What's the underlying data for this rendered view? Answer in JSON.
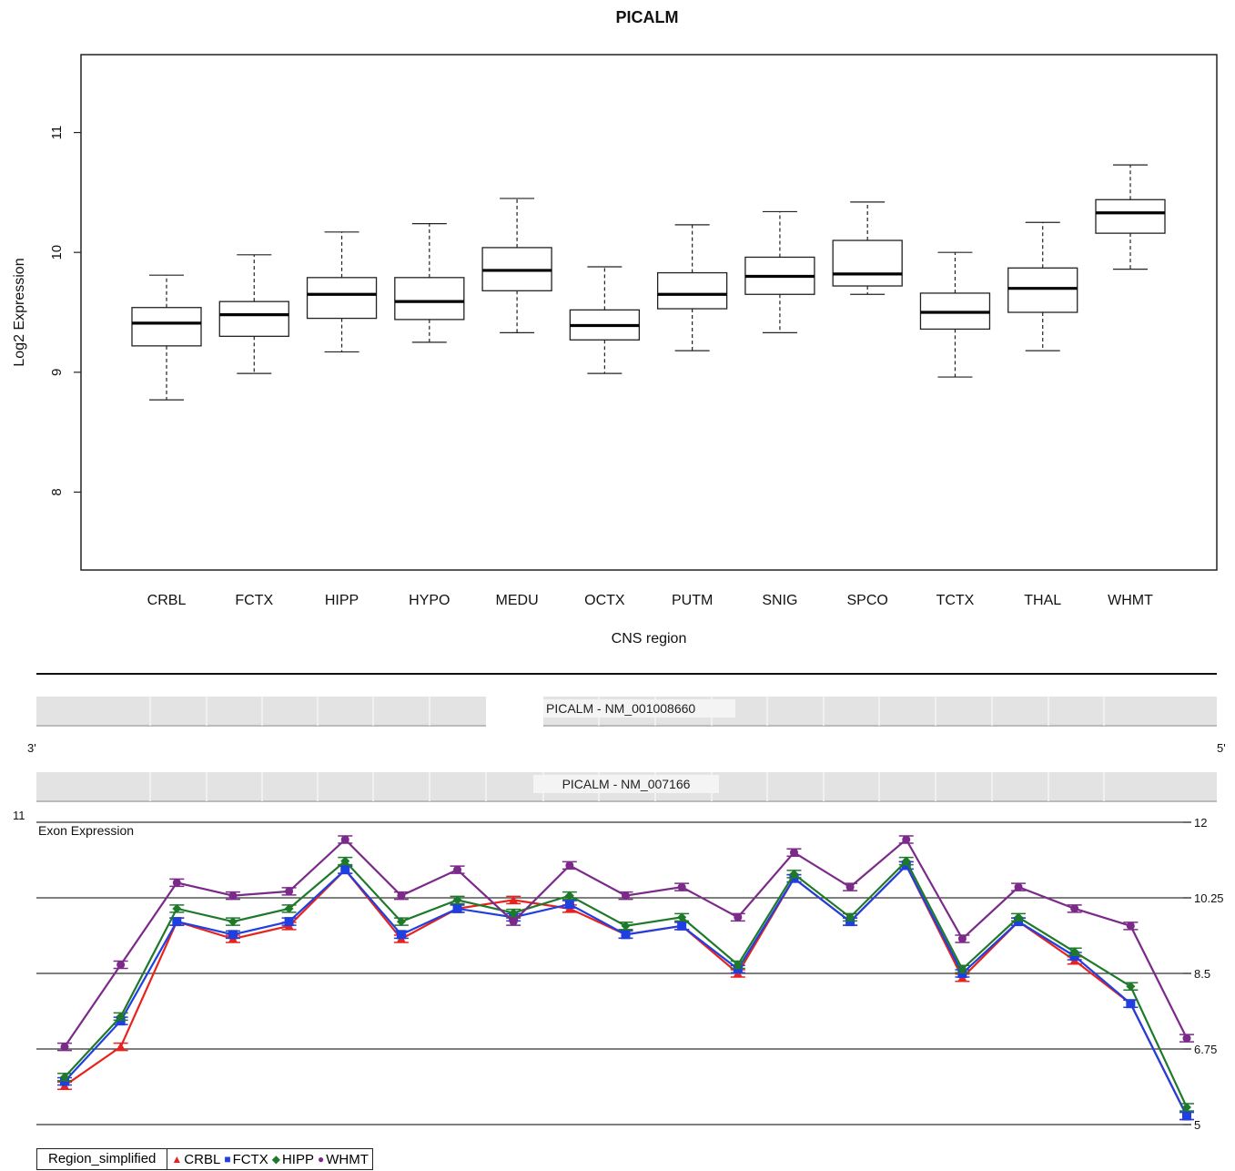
{
  "chart_data": [
    {
      "type": "boxplot",
      "title": "PICALM",
      "xlabel": "CNS region",
      "ylabel": "Log2 Expression",
      "ylim": [
        7.35,
        11.65
      ],
      "yticks": [
        8,
        9,
        10,
        11
      ],
      "categories": [
        "CRBL",
        "FCTX",
        "HIPP",
        "HYPO",
        "MEDU",
        "OCTX",
        "PUTM",
        "SNIG",
        "SPCO",
        "TCTX",
        "THAL",
        "WHMT"
      ],
      "boxes": [
        {
          "min": 8.77,
          "q1": 9.22,
          "median": 9.41,
          "q3": 9.54,
          "max": 9.81
        },
        {
          "min": 8.99,
          "q1": 9.3,
          "median": 9.48,
          "q3": 9.59,
          "max": 9.98
        },
        {
          "min": 9.17,
          "q1": 9.45,
          "median": 9.65,
          "q3": 9.79,
          "max": 10.17
        },
        {
          "min": 9.25,
          "q1": 9.44,
          "median": 9.59,
          "q3": 9.79,
          "max": 10.24
        },
        {
          "min": 9.33,
          "q1": 9.68,
          "median": 9.85,
          "q3": 10.04,
          "max": 10.45
        },
        {
          "min": 8.99,
          "q1": 9.27,
          "median": 9.39,
          "q3": 9.52,
          "max": 9.88
        },
        {
          "min": 9.18,
          "q1": 9.53,
          "median": 9.65,
          "q3": 9.83,
          "max": 10.23
        },
        {
          "min": 9.33,
          "q1": 9.65,
          "median": 9.8,
          "q3": 9.96,
          "max": 10.34
        },
        {
          "min": 9.65,
          "q1": 9.72,
          "median": 9.82,
          "q3": 10.1,
          "max": 10.42
        },
        {
          "min": 8.96,
          "q1": 9.36,
          "median": 9.5,
          "q3": 9.66,
          "max": 10.0
        },
        {
          "min": 9.18,
          "q1": 9.5,
          "median": 9.7,
          "q3": 9.87,
          "max": 10.25
        },
        {
          "min": 9.86,
          "q1": 10.16,
          "median": 10.33,
          "q3": 10.44,
          "max": 10.73
        }
      ]
    },
    {
      "type": "line",
      "title": "Exon Expression",
      "left_axis_label": "11",
      "yticks": [
        5,
        6.75,
        8.5,
        10.25,
        12
      ],
      "ytick_labels": [
        "5",
        "6.75",
        "8.5",
        "10.25",
        "12"
      ],
      "ylim": [
        5,
        12
      ],
      "legend": {
        "title": "Region_simplified",
        "placement": "bottom-left"
      },
      "series": [
        {
          "name": "CRBL",
          "color": "#e8231e",
          "marker": "triangle",
          "values": [
            5.9,
            6.8,
            9.7,
            9.3,
            9.6,
            10.9,
            9.3,
            10.0,
            10.2,
            10.0,
            9.4,
            9.6,
            8.5,
            10.7,
            9.7,
            11.0,
            8.4,
            9.7,
            8.8,
            7.8,
            5.2
          ]
        },
        {
          "name": "FCTX",
          "color": "#1f3fe0",
          "marker": "square",
          "values": [
            6.0,
            7.4,
            9.7,
            9.4,
            9.7,
            10.9,
            9.4,
            10.0,
            9.8,
            10.1,
            9.4,
            9.6,
            8.6,
            10.7,
            9.7,
            11.0,
            8.5,
            9.7,
            8.9,
            7.8,
            5.2
          ]
        },
        {
          "name": "HIPP",
          "color": "#1e7a2a",
          "marker": "diamond",
          "values": [
            6.1,
            7.5,
            10.0,
            9.7,
            10.0,
            11.1,
            9.7,
            10.2,
            9.9,
            10.3,
            9.6,
            9.8,
            8.7,
            10.8,
            9.8,
            11.1,
            8.6,
            9.8,
            9.0,
            8.2,
            5.4
          ]
        },
        {
          "name": "WHMT",
          "color": "#7b2a8a",
          "marker": "circle",
          "values": [
            6.8,
            8.7,
            10.6,
            10.3,
            10.4,
            11.6,
            10.3,
            10.9,
            9.7,
            11.0,
            10.3,
            10.5,
            9.8,
            11.3,
            10.5,
            11.6,
            9.3,
            10.5,
            10.0,
            9.6,
            7.0
          ]
        }
      ]
    }
  ],
  "tracks": {
    "left_end": "3'",
    "right_end": "5'",
    "transcript_1": "PICALM - NM_001008660",
    "transcript_2": "PICALM - NM_007166"
  }
}
